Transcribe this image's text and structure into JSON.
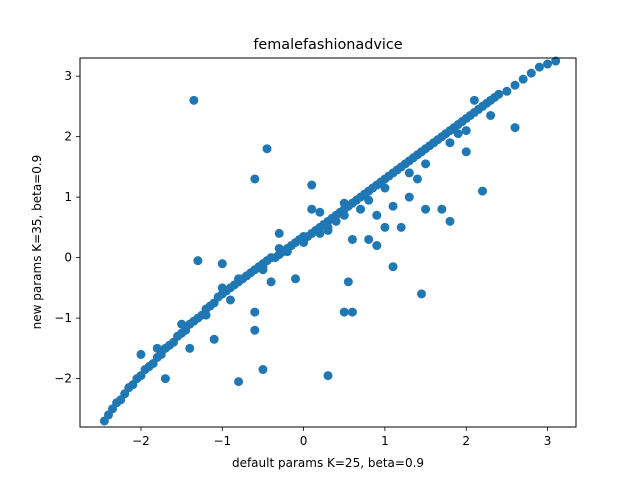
{
  "chart_data": {
    "type": "scatter",
    "title": "femalefashionadvice",
    "xlabel": "default params K=25, beta=0.9",
    "ylabel": "new params K=35, beta=0.9",
    "xlim": [
      -2.75,
      3.35
    ],
    "ylim": [
      -2.8,
      3.3
    ],
    "xticks": [
      -2,
      -1,
      0,
      1,
      2,
      3
    ],
    "yticks": [
      -2,
      -1,
      0,
      1,
      2,
      3
    ],
    "xtick_labels": [
      "−2",
      "−1",
      "0",
      "1",
      "2",
      "3"
    ],
    "ytick_labels": [
      "−2",
      "−1",
      "0",
      "1",
      "2",
      "3"
    ],
    "grid": false,
    "marker_color": "#1f77b4",
    "series": [
      {
        "x": [
          -2.45,
          -2.4,
          -2.35,
          -2.3,
          -2.25,
          -2.2,
          -2.15,
          -2.1,
          -2.05,
          -2.0,
          -1.95,
          -1.9,
          -1.85,
          -1.8,
          -1.75,
          -1.7,
          -1.65,
          -1.6,
          -1.55,
          -1.5,
          -1.45,
          -1.4,
          -1.35,
          -1.3,
          -1.25,
          -1.2,
          -1.15,
          -1.1,
          -1.05,
          -1.0,
          -0.95,
          -0.9,
          -0.85,
          -0.8,
          -0.75,
          -0.7,
          -0.65,
          -0.6,
          -0.55,
          -0.5,
          -0.45,
          -0.4,
          -0.35,
          -0.3,
          -0.25,
          -0.2,
          -0.15,
          -0.1,
          -0.05,
          0.0,
          0.05,
          0.1,
          0.15,
          0.2,
          0.25,
          0.3,
          0.35,
          0.4,
          0.45,
          0.5,
          0.55,
          0.6,
          0.65,
          0.7,
          0.75,
          0.8,
          0.85,
          0.9,
          0.95,
          1.0,
          1.05,
          1.1,
          1.15,
          1.2,
          1.25,
          1.3,
          1.35,
          1.4,
          1.45,
          1.5,
          1.55,
          1.6,
          1.65,
          1.7,
          1.75,
          1.8,
          1.85,
          1.9,
          1.95,
          2.0,
          2.05,
          2.1,
          2.15,
          2.2,
          2.25,
          2.3,
          2.35,
          2.4,
          2.5,
          2.6,
          2.7,
          2.8,
          2.9,
          3.0,
          3.1,
          -2.0,
          -1.8,
          -1.5,
          -1.2,
          -1.0,
          -0.8,
          -0.5,
          -0.3,
          0.0,
          0.3,
          0.5,
          0.8,
          1.0,
          1.3,
          1.5,
          1.8,
          2.0,
          2.3,
          -1.7,
          -1.4,
          -1.1,
          -0.9,
          -0.6,
          -0.4,
          -0.1,
          0.2,
          0.4,
          0.6,
          0.9,
          1.1,
          1.4,
          1.6,
          1.9,
          2.1,
          -1.0,
          -0.3,
          0.2,
          0.5,
          0.8,
          1.2,
          1.5,
          0.3,
          -0.5,
          -0.2,
          0.1,
          0.7,
          1.0,
          1.3,
          0.9,
          0.1,
          -0.6,
          -1.3,
          -0.5,
          0.6,
          1.7,
          2.2,
          2.6,
          2.0,
          1.8,
          0.3,
          -0.6,
          -0.8,
          0.5,
          1.1,
          -1.35,
          -0.45,
          0.55,
          1.45
        ],
        "y": [
          -2.7,
          -2.6,
          -2.5,
          -2.4,
          -2.35,
          -2.25,
          -2.15,
          -2.1,
          -2.0,
          -1.95,
          -1.85,
          -1.8,
          -1.75,
          -1.65,
          -1.6,
          -1.5,
          -1.45,
          -1.4,
          -1.3,
          -1.25,
          -1.2,
          -1.1,
          -1.05,
          -1.0,
          -0.95,
          -0.85,
          -0.8,
          -0.75,
          -0.65,
          -0.6,
          -0.55,
          -0.5,
          -0.45,
          -0.4,
          -0.35,
          -0.3,
          -0.25,
          -0.2,
          -0.15,
          -0.1,
          -0.05,
          0.0,
          0.0,
          0.05,
          0.1,
          0.15,
          0.2,
          0.25,
          0.3,
          0.35,
          0.35,
          0.4,
          0.45,
          0.5,
          0.55,
          0.6,
          0.65,
          0.7,
          0.75,
          0.8,
          0.85,
          0.9,
          0.95,
          1.0,
          1.05,
          1.1,
          1.15,
          1.2,
          1.25,
          1.3,
          1.35,
          1.4,
          1.45,
          1.5,
          1.55,
          1.6,
          1.65,
          1.7,
          1.75,
          1.8,
          1.85,
          1.9,
          1.95,
          2.0,
          2.05,
          2.1,
          2.15,
          2.2,
          2.25,
          2.3,
          2.35,
          2.4,
          2.45,
          2.5,
          2.55,
          2.6,
          2.65,
          2.7,
          2.75,
          2.85,
          2.95,
          3.05,
          3.15,
          3.2,
          3.25,
          -1.6,
          -1.5,
          -1.1,
          -0.95,
          -0.5,
          -0.35,
          -0.15,
          0.15,
          0.25,
          0.45,
          0.7,
          0.95,
          1.15,
          1.4,
          1.55,
          1.9,
          2.1,
          2.35,
          -2.0,
          -1.5,
          -1.35,
          -0.7,
          -0.9,
          -0.4,
          -0.35,
          0.4,
          0.6,
          0.3,
          0.7,
          0.85,
          1.3,
          1.9,
          2.05,
          2.6,
          -0.1,
          0.4,
          0.75,
          0.9,
          0.3,
          0.5,
          0.8,
          0.5,
          -0.2,
          0.1,
          0.8,
          0.8,
          0.5,
          1.0,
          0.2,
          1.2,
          1.3,
          -0.05,
          -1.85,
          -0.9,
          0.8,
          1.1,
          2.15,
          1.75,
          0.6,
          -1.95,
          -1.2,
          -2.05,
          -0.9,
          -0.15,
          2.6,
          1.8,
          -0.4,
          -0.6
        ],
        "y_extra_outliers_note": ""
      }
    ]
  }
}
